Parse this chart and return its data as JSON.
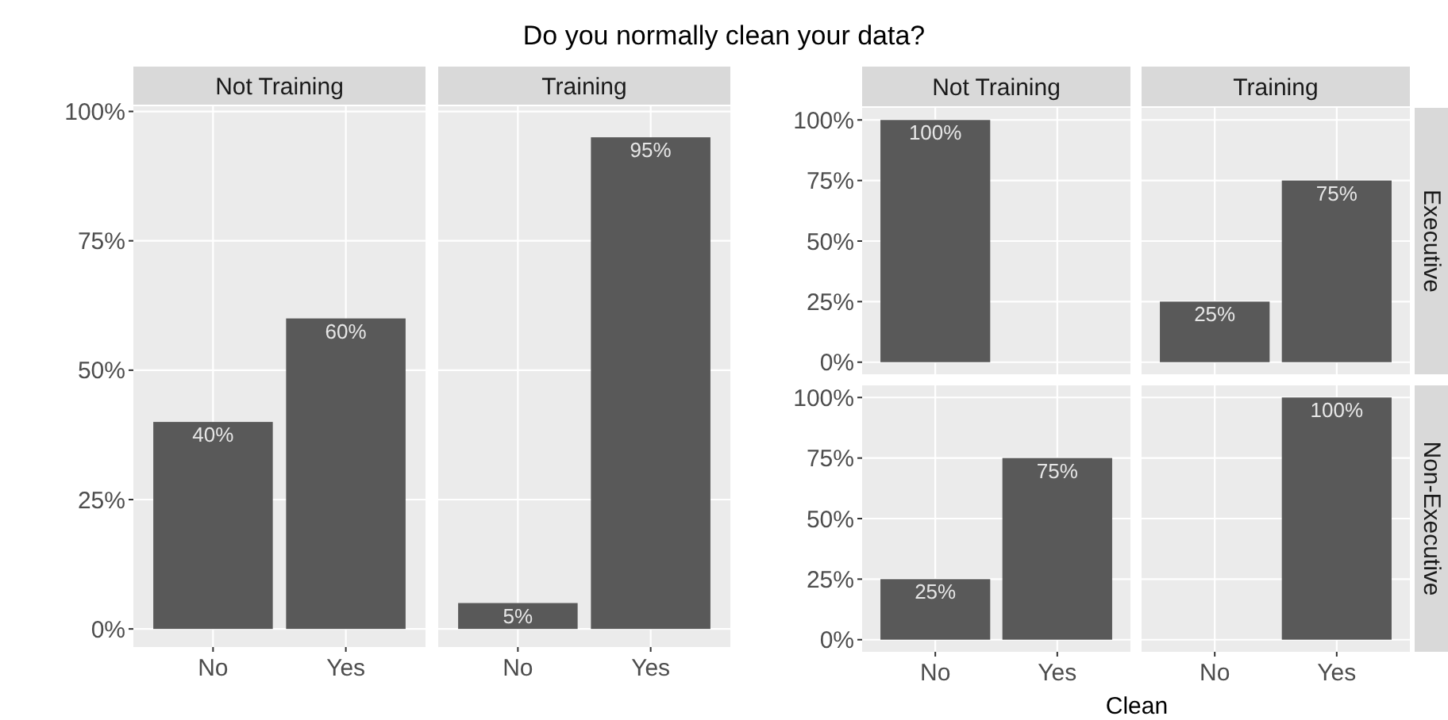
{
  "chart_data": [
    {
      "type": "bar",
      "title": "Not Training",
      "annotations": [
        "Do you normally clean your data?"
      ],
      "categories": [
        "No",
        "Yes"
      ],
      "values": [
        40,
        60
      ],
      "value_labels": [
        "40%",
        "60%"
      ],
      "color": "#595959",
      "ylim": [
        -3.5,
        101
      ],
      "yticks": [
        {
          "value": 0,
          "label": "0%"
        },
        {
          "value": 25,
          "label": "25%"
        },
        {
          "value": 50,
          "label": "50%"
        },
        {
          "value": 75,
          "label": "75%"
        },
        {
          "value": 100,
          "label": "100%"
        }
      ],
      "grid": true
    },
    {
      "type": "bar",
      "title": "Training",
      "categories": [
        "No",
        "Yes"
      ],
      "values": [
        5,
        95
      ],
      "value_labels": [
        "5%",
        "95%"
      ],
      "color": "#595959",
      "ylim": [
        -3.5,
        101
      ],
      "yticks": [
        {
          "value": 0,
          "label": null
        },
        {
          "value": 25,
          "label": null
        },
        {
          "value": 50,
          "label": null
        },
        {
          "value": 75,
          "label": null
        },
        {
          "value": 100,
          "label": null
        }
      ],
      "grid": true,
      "tick_labels": "x"
    },
    {
      "type": "bar",
      "title": "Not Training",
      "categories": [
        null,
        null
      ],
      "values": [
        100,
        null
      ],
      "value_labels": [
        "100%",
        null
      ],
      "color": "#595959",
      "ylim": [
        -5,
        105
      ],
      "yticks": [
        {
          "value": 0,
          "label": "0%"
        },
        {
          "value": 25,
          "label": "25%"
        },
        {
          "value": 50,
          "label": "50%"
        },
        {
          "value": 75,
          "label": "75%"
        },
        {
          "value": 100,
          "label": "100%"
        }
      ],
      "grid": true,
      "tick_labels": "y"
    },
    {
      "type": "bar",
      "title": "Training",
      "subtitle": "Executive",
      "categories": [
        null,
        null
      ],
      "values": [
        25,
        75
      ],
      "value_labels": [
        "25%",
        "75%"
      ],
      "color": "#595959",
      "grid": true,
      "tick_labels": false
    },
    {
      "type": "bar",
      "xlabel": "Clean",
      "categories": [
        "No",
        "Yes"
      ],
      "values": [
        25,
        75
      ],
      "value_labels": [
        "25%",
        "75%"
      ],
      "color": "#595959",
      "ylim": [
        -5,
        105
      ],
      "yticks": [
        {
          "value": 0,
          "label": "0%"
        },
        {
          "value": 25,
          "label": "25%"
        },
        {
          "value": 50,
          "label": "50%"
        },
        {
          "value": 75,
          "label": "75%"
        },
        {
          "value": 100,
          "label": "100%"
        }
      ],
      "grid": true
    },
    {
      "type": "bar",
      "subtitle": "Non-Executive",
      "categories": [
        "No",
        "Yes"
      ],
      "values": [
        null,
        100
      ],
      "value_labels": [
        null,
        "100%"
      ],
      "color": "#595959",
      "ylim": [
        -5,
        105
      ],
      "yticks": [
        {
          "value": 0,
          "label": null
        },
        {
          "value": 25,
          "label": null
        },
        {
          "value": 50,
          "label": null
        },
        {
          "value": 75,
          "label": null
        },
        {
          "value": 100,
          "label": null
        }
      ],
      "grid": true,
      "tick_labels": "x"
    }
  ]
}
